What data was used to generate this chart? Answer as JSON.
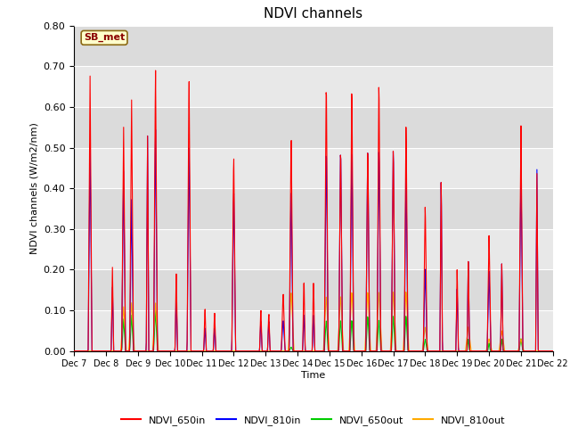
{
  "title": "NDVI channels",
  "xlabel": "Time",
  "ylabel": "NDVI channels (W/m2/nm)",
  "ylim": [
    0.0,
    0.8
  ],
  "yticks": [
    0.0,
    0.1,
    0.2,
    0.3,
    0.4,
    0.5,
    0.6,
    0.7,
    0.8
  ],
  "annotation": "SB_met",
  "colors": {
    "NDVI_650in": "#ff0000",
    "NDVI_810in": "#0000ff",
    "NDVI_650out": "#00cc00",
    "NDVI_810out": "#ffaa00"
  },
  "background_color": "#e8e8e8",
  "x_tick_labels": [
    "Dec 7",
    "Dec 8",
    "Dec 9",
    "Dec 10",
    "Dec 11",
    "Dec 12",
    "Dec 13",
    "Dec 14",
    "Dec 15",
    "Dec 16",
    "Dec 17",
    "Dec 18",
    "Dec 19",
    "Dec 20",
    "Dec 21",
    "Dec 22"
  ],
  "figsize": [
    6.4,
    4.8
  ],
  "dpi": 100
}
